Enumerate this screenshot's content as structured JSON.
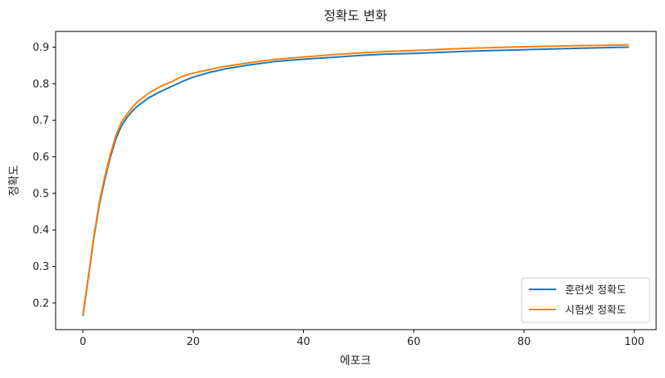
{
  "chart_data": {
    "type": "line",
    "title": "정확도 변화",
    "xlabel": "에포크",
    "ylabel": "정확도",
    "xlim": [
      -4.95,
      103.95
    ],
    "ylim": [
      0.127,
      0.943
    ],
    "xticks": [
      0,
      20,
      40,
      60,
      80,
      100
    ],
    "yticks": [
      0.2,
      0.3,
      0.4,
      0.5,
      0.6,
      0.7,
      0.8,
      0.9
    ],
    "grid": false,
    "legend_position": "bottom-right",
    "series": [
      {
        "name": "훈련셋 정확도",
        "color": "#1f77b4",
        "x": [
          0,
          1,
          2,
          3,
          4,
          5,
          6,
          7,
          8,
          9,
          10,
          12,
          14,
          16,
          18,
          20,
          23,
          26,
          30,
          35,
          40,
          45,
          50,
          55,
          60,
          70,
          80,
          90,
          99
        ],
        "y": [
          0.165,
          0.27,
          0.38,
          0.47,
          0.54,
          0.6,
          0.65,
          0.685,
          0.708,
          0.726,
          0.74,
          0.762,
          0.778,
          0.792,
          0.806,
          0.818,
          0.831,
          0.841,
          0.851,
          0.861,
          0.867,
          0.872,
          0.877,
          0.881,
          0.883,
          0.889,
          0.893,
          0.897,
          0.9
        ]
      },
      {
        "name": "시험셋 정확도",
        "color": "#ff7f0e",
        "x": [
          0,
          1,
          2,
          3,
          4,
          5,
          6,
          7,
          8,
          9,
          10,
          12,
          14,
          16,
          18,
          20,
          23,
          26,
          30,
          35,
          40,
          45,
          50,
          55,
          60,
          70,
          80,
          90,
          99
        ],
        "y": [
          0.168,
          0.275,
          0.385,
          0.478,
          0.548,
          0.608,
          0.66,
          0.695,
          0.717,
          0.736,
          0.752,
          0.775,
          0.792,
          0.805,
          0.82,
          0.829,
          0.839,
          0.848,
          0.857,
          0.867,
          0.873,
          0.879,
          0.884,
          0.888,
          0.891,
          0.897,
          0.901,
          0.904,
          0.906
        ]
      }
    ]
  }
}
